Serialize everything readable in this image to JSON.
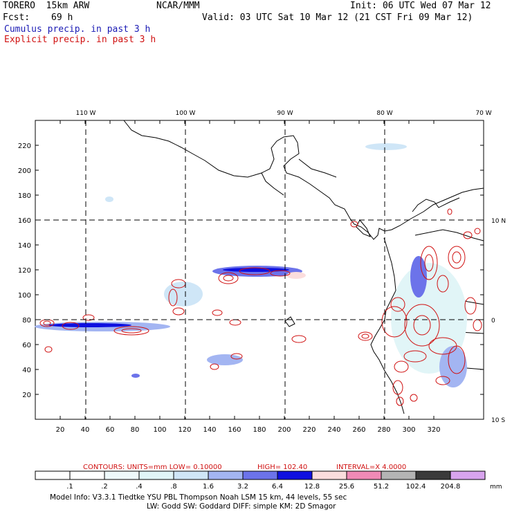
{
  "header": {
    "model": "TORERO  15km ARW",
    "org": "NCAR/MMM",
    "init": "Init: 06 UTC Wed 07 Mar 12",
    "fcst_label": "Fcst:",
    "fcst_value": "69 h",
    "valid": "Valid: 03 UTC Sat 10 Mar 12 (21 CST Fri 09 Mar 12)",
    "field1": "Cumulus precip. in past 3 h",
    "field2": "Explicit precip. in past 3 h"
  },
  "map": {
    "top_lon_labels": [
      "110 W",
      "100 W",
      "90 W",
      "80 W",
      "70 W"
    ],
    "right_lat_labels": [
      "10 N",
      "0",
      "10 S"
    ],
    "left_ticks": [
      "220",
      "200",
      "180",
      "160",
      "140",
      "120",
      "100",
      "80",
      "60",
      "40",
      "20"
    ],
    "bottom_ticks": [
      "20",
      "40",
      "60",
      "80",
      "100",
      "120",
      "140",
      "160",
      "180",
      "200",
      "220",
      "240",
      "260",
      "280",
      "300",
      "320"
    ],
    "grid": "dashed lat/lon lines"
  },
  "contour_info": {
    "units": "CONTOURS:  UNITS=mm  LOW= 0.10000",
    "high": "HIGH=  102.40",
    "interval": "INTERVAL=X  4.0000"
  },
  "colorbar": {
    "colors": [
      "#ffffff",
      "#ffffff",
      "#eef9fb",
      "#e1f5f7",
      "#cfe6f7",
      "#a3b5f2",
      "#6c73ea",
      "#0e10e0",
      "#fbdddd",
      "#f08ab6",
      "#b4b4b4",
      "#3a3a3a",
      "#d8a4ee"
    ],
    "labels": [
      ".1",
      ".2",
      ".4",
      ".8",
      "1.6",
      "3.2",
      "6.4",
      "12.8",
      "25.6",
      "51.2",
      "102.4",
      "204.8"
    ],
    "unit": "mm"
  },
  "footer": {
    "line1": "Model Info: V3.3.1   Tiedtke YSU PBL  Thompson   Noah LSM  15 km,   44 levels,   55 sec",
    "line2": "LW: Godd SW: Goddard DIFF: simple KM: 2D Smagor"
  }
}
